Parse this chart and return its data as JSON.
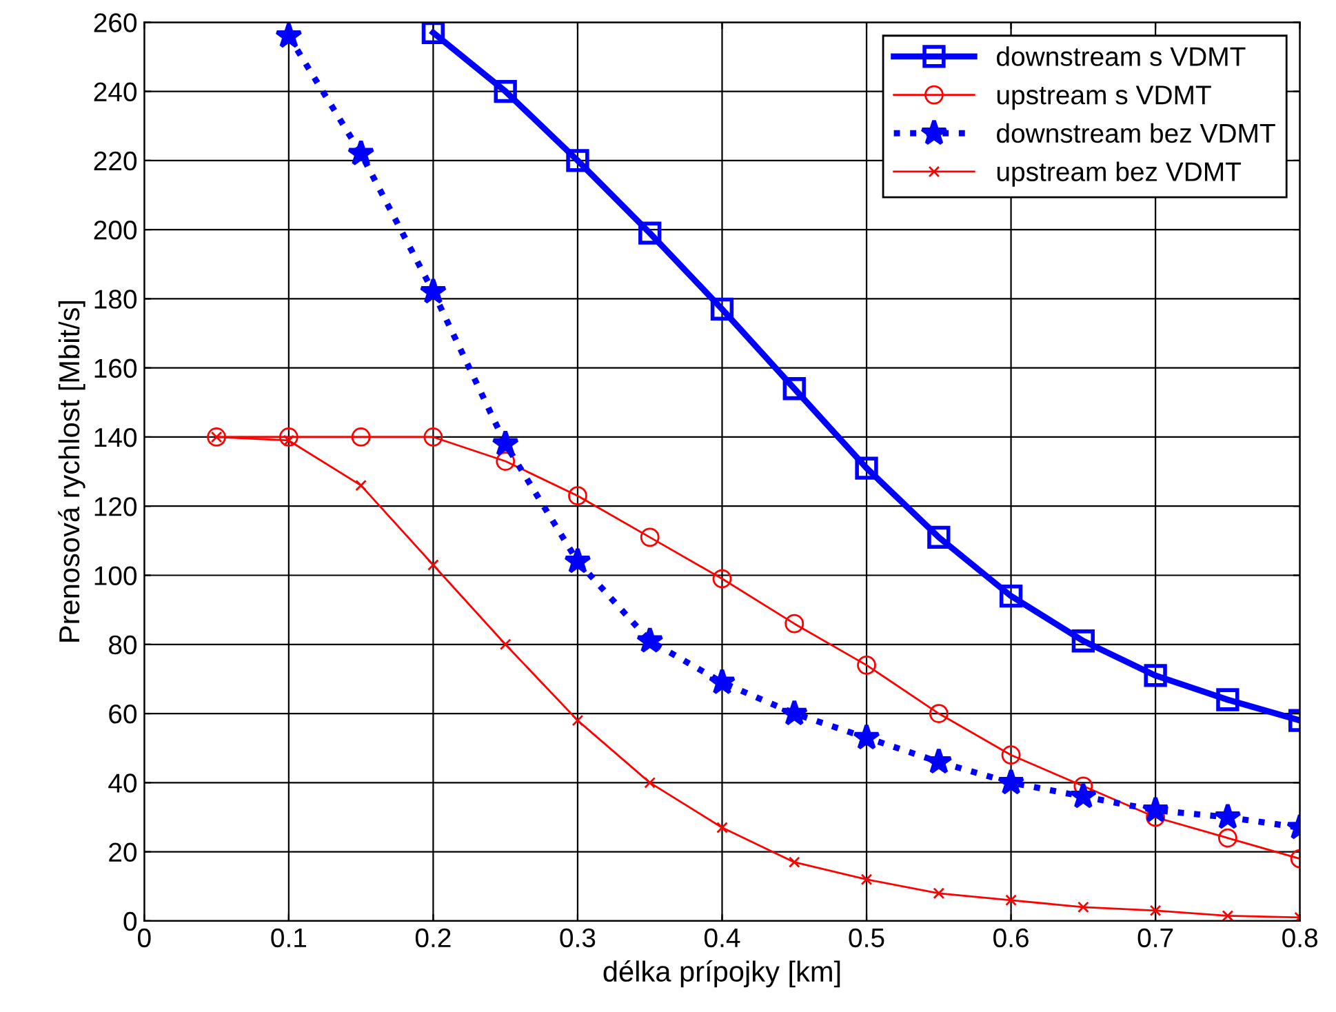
{
  "chart_data": {
    "type": "line",
    "xlabel": "délka prípojky [km]",
    "ylabel": "Prenosová rychlost [Mbit/s]",
    "xlim": [
      0,
      0.8
    ],
    "xticks": [
      0,
      0.1,
      0.2,
      0.3,
      0.4,
      0.5,
      0.6,
      0.7,
      0.8
    ],
    "ylim": [
      0,
      260
    ],
    "yticks": [
      0,
      20,
      40,
      60,
      80,
      100,
      120,
      140,
      160,
      180,
      200,
      220,
      240,
      260
    ],
    "grid": true,
    "legend": "top right",
    "series": [
      {
        "name": "downstream s VDMT",
        "color": "#0000ff",
        "marker": "square",
        "line_style": "solid",
        "x": [
          0.2,
          0.25,
          0.3,
          0.35,
          0.4,
          0.45,
          0.5,
          0.55,
          0.6,
          0.65,
          0.7,
          0.75,
          0.8
        ],
        "values": [
          257,
          240,
          220,
          199,
          177,
          154,
          131,
          111,
          94,
          81,
          71,
          64,
          58
        ]
      },
      {
        "name": "upstream s VDMT",
        "color": "#ff0000",
        "marker": "circle",
        "line_style": "solid",
        "x": [
          0.05,
          0.1,
          0.15,
          0.2,
          0.25,
          0.3,
          0.35,
          0.4,
          0.45,
          0.5,
          0.55,
          0.6,
          0.65,
          0.7,
          0.75,
          0.8
        ],
        "values": [
          140,
          140,
          140,
          140,
          133,
          123,
          111,
          99,
          86,
          74,
          60,
          48,
          39,
          30,
          24,
          18
        ]
      },
      {
        "name": "downstream bez VDMT",
        "color": "#0000ff",
        "marker": "star",
        "line_style": "dotted",
        "x": [
          0.1,
          0.15,
          0.2,
          0.25,
          0.3,
          0.35,
          0.4,
          0.45,
          0.5,
          0.55,
          0.6,
          0.65,
          0.7,
          0.75,
          0.8
        ],
        "values": [
          256,
          222,
          182,
          138,
          104,
          81,
          69,
          60,
          53,
          46,
          40,
          36,
          32,
          30,
          27
        ]
      },
      {
        "name": "upstream bez VDMT",
        "color": "#ff0000",
        "marker": "cross",
        "line_style": "solid",
        "x": [
          0.05,
          0.1,
          0.15,
          0.2,
          0.25,
          0.3,
          0.35,
          0.4,
          0.45,
          0.5,
          0.55,
          0.6,
          0.65,
          0.7,
          0.75,
          0.8
        ],
        "values": [
          140,
          139,
          126,
          103,
          80,
          58,
          40,
          27,
          17,
          12,
          8,
          6,
          4,
          3,
          1.5,
          1
        ]
      }
    ]
  }
}
